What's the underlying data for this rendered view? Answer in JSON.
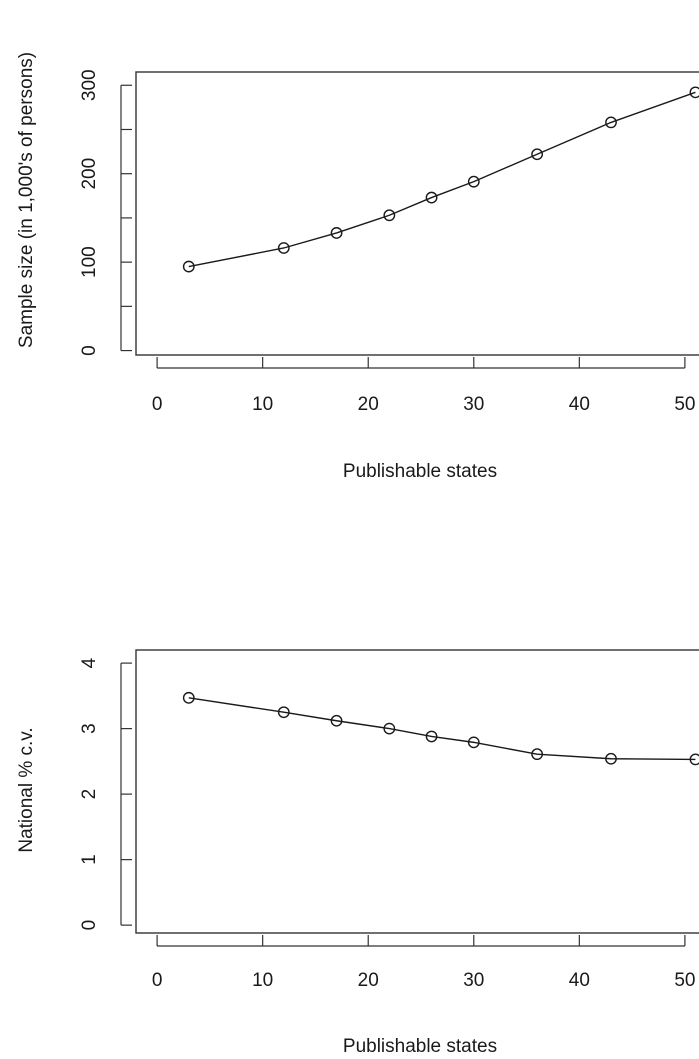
{
  "chart_data": [
    {
      "type": "line",
      "title": "",
      "xlabel": "Publishable states",
      "ylabel": "Sample size (in 1,000's of persons)",
      "x_ticks": [
        0,
        10,
        20,
        30,
        40,
        50
      ],
      "y_ticks": [
        0,
        100,
        200,
        300
      ],
      "xlim": [
        -2,
        52
      ],
      "ylim": [
        -5,
        315
      ],
      "grid": false,
      "legend": "none",
      "x": [
        3,
        12,
        17,
        22,
        26,
        30,
        36,
        43,
        51
      ],
      "series": [
        {
          "values": [
            95,
            116,
            133,
            153,
            173,
            191,
            222,
            258,
            292
          ]
        }
      ]
    },
    {
      "type": "line",
      "title": "",
      "xlabel": "Publishable states",
      "ylabel": "National % c.v.",
      "x_ticks": [
        0,
        10,
        20,
        30,
        40,
        50
      ],
      "y_ticks": [
        0,
        1,
        2,
        3,
        4
      ],
      "xlim": [
        -2,
        52
      ],
      "ylim": [
        -0.12,
        4.2
      ],
      "grid": false,
      "legend": "none",
      "x": [
        3,
        12,
        17,
        22,
        26,
        30,
        36,
        43,
        51
      ],
      "series": [
        {
          "values": [
            3.47,
            3.25,
            3.12,
            3.0,
            2.88,
            2.79,
            2.61,
            2.54,
            2.53
          ]
        }
      ]
    }
  ]
}
